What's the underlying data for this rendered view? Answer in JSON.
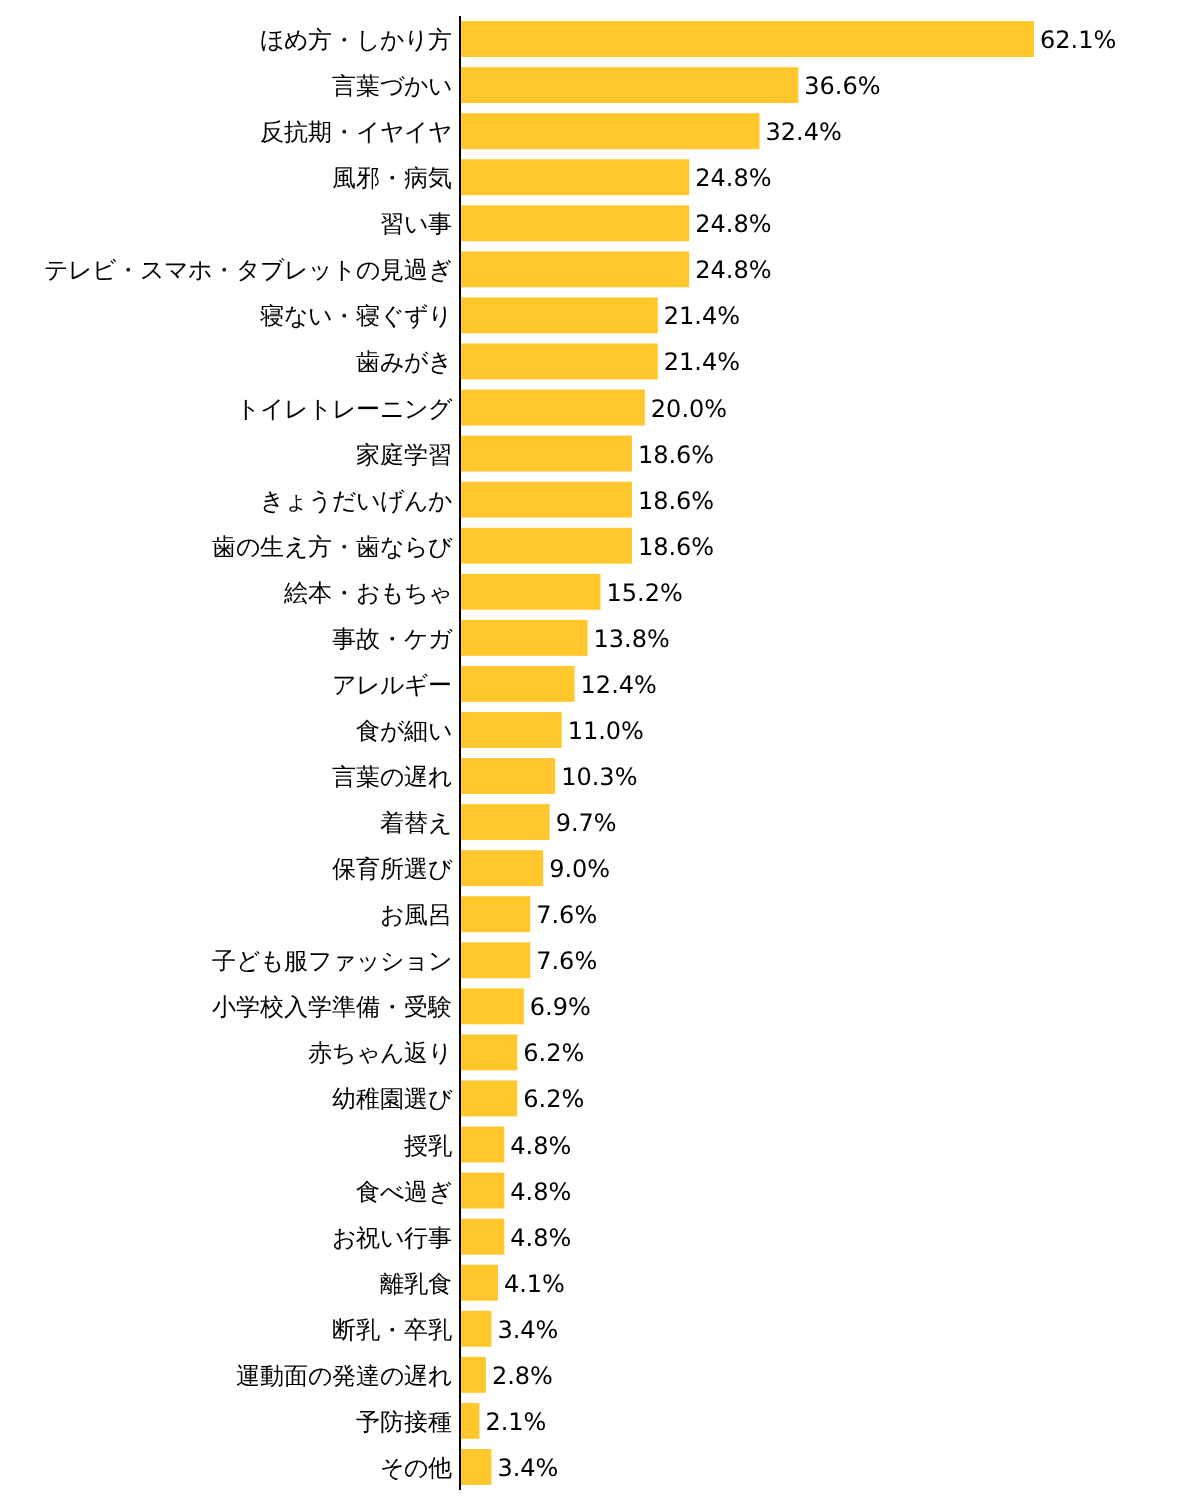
{
  "chart_data": {
    "type": "bar",
    "orientation": "horizontal",
    "color": "#ffc72c",
    "categories": [
      "ほめ方・しかり方",
      "言葉づかい",
      "反抗期・イヤイヤ",
      "風邪・病気",
      "習い事",
      "テレビ・スマホ・タブレットの見過ぎ",
      "寝ない・寝ぐずり",
      "歯みがき",
      "トイレトレーニング",
      "家庭学習",
      "きょうだいげんか",
      "歯の生え方・歯ならび",
      "絵本・おもちゃ",
      "事故・ケガ",
      "アレルギー",
      "食が細い",
      "言葉の遅れ",
      "着替え",
      "保育所選び",
      "お風呂",
      "子ども服ファッション",
      "小学校入学準備・受験",
      "赤ちゃん返り",
      "幼稚園選び",
      "授乳",
      "食べ過ぎ",
      "お祝い行事",
      "離乳食",
      "断乳・卒乳",
      "運動面の発達の遅れ",
      "予防接種",
      "その他"
    ],
    "values": [
      62.1,
      36.6,
      32.4,
      24.8,
      24.8,
      24.8,
      21.4,
      21.4,
      20.0,
      18.6,
      18.6,
      18.6,
      15.2,
      13.8,
      12.4,
      11.0,
      10.3,
      9.7,
      9.0,
      7.6,
      7.6,
      6.9,
      6.2,
      6.2,
      4.8,
      4.8,
      4.8,
      4.1,
      3.4,
      2.8,
      2.1,
      3.4
    ],
    "value_labels": [
      "62.1%",
      "36.6%",
      "32.4%",
      "24.8%",
      "24.8%",
      "24.8%",
      "21.4%",
      "21.4%",
      "20.0%",
      "18.6%",
      "18.6%",
      "18.6%",
      "15.2%",
      "13.8%",
      "12.4%",
      "11.0%",
      "10.3%",
      "9.7%",
      "9.0%",
      "7.6%",
      "7.6%",
      "6.9%",
      "6.2%",
      "6.2%",
      "4.8%",
      "4.8%",
      "4.8%",
      "4.1%",
      "3.4%",
      "2.8%",
      "2.1%",
      "3.4%"
    ]
  }
}
